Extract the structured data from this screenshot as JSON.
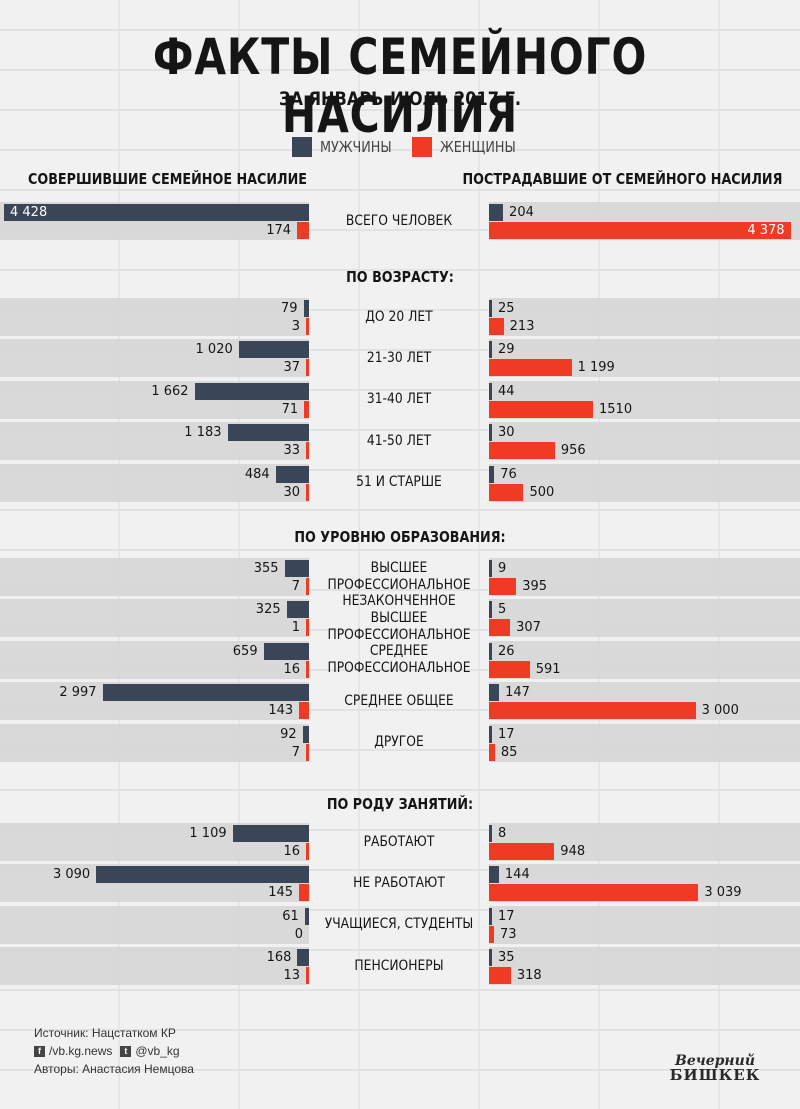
{
  "title": "ФАКТЫ СЕМЕЙНОГО НАСИЛИЯ",
  "subtitle": "ЗА ЯНВАРЬ-ИЮЛЬ 2017 Г.",
  "colors": {
    "men": "#3b4558",
    "women": "#f03b24",
    "row_bg": "#d6d6d6"
  },
  "legend": {
    "men": "МУЖЧИНЫ",
    "women": "ЖЕНЩИНЫ"
  },
  "headers": {
    "left": "СОВЕРШИВШИЕ СЕМЕЙНОЕ НАСИЛИЕ",
    "right": "ПОСТРАДАВШИЕ ОТ СЕМЕЙНОГО НАСИЛИЯ"
  },
  "chart_data": {
    "type": "bar",
    "orientation": "horizontal-butterfly",
    "series_names": [
      "МУЖЧИНЫ",
      "ЖЕНЩИНЫ"
    ],
    "groups": [
      {
        "heading": "",
        "rows": [
          {
            "label": "ВСЕГО ЧЕЛОВЕК",
            "label_lines": [
              "ВСЕГО ЧЕЛОВЕК"
            ],
            "perp_men": 4428,
            "perp_women": 174,
            "vict_men": 204,
            "vict_women": 4378,
            "perp_men_text": "4 428",
            "perp_women_text": "174",
            "vict_men_text": "204",
            "vict_women_text": "4 378"
          }
        ]
      },
      {
        "heading": "ПО ВОЗРАСТУ:",
        "rows": [
          {
            "label": "ДО 20 ЛЕТ",
            "label_lines": [
              "ДО 20 ЛЕТ"
            ],
            "perp_men": 79,
            "perp_women": 3,
            "vict_men": 25,
            "vict_women": 213,
            "perp_men_text": "79",
            "perp_women_text": "3",
            "vict_men_text": "25",
            "vict_women_text": "213"
          },
          {
            "label": "21-30 ЛЕТ",
            "label_lines": [
              "21-30 ЛЕТ"
            ],
            "perp_men": 1020,
            "perp_women": 37,
            "vict_men": 29,
            "vict_women": 1199,
            "perp_men_text": "1 020",
            "perp_women_text": "37",
            "vict_men_text": "29",
            "vict_women_text": "1 199"
          },
          {
            "label": "31-40 ЛЕТ",
            "label_lines": [
              "31-40 ЛЕТ"
            ],
            "perp_men": 1662,
            "perp_women": 71,
            "vict_men": 44,
            "vict_women": 1510,
            "perp_men_text": "1 662",
            "perp_women_text": "71",
            "vict_men_text": "44",
            "vict_women_text": "1510"
          },
          {
            "label": "41-50 ЛЕТ",
            "label_lines": [
              "41-50 ЛЕТ"
            ],
            "perp_men": 1183,
            "perp_women": 33,
            "vict_men": 30,
            "vict_women": 956,
            "perp_men_text": "1 183",
            "perp_women_text": "33",
            "vict_men_text": "30",
            "vict_women_text": "956"
          },
          {
            "label": "51 И СТАРШЕ",
            "label_lines": [
              "51 И СТАРШЕ"
            ],
            "perp_men": 484,
            "perp_women": 30,
            "vict_men": 76,
            "vict_women": 500,
            "perp_men_text": "484",
            "perp_women_text": "30",
            "vict_men_text": "76",
            "vict_women_text": "500"
          }
        ]
      },
      {
        "heading": "ПО УРОВНЮ ОБРАЗОВАНИЯ:",
        "rows": [
          {
            "label": "ВЫСШЕЕ ПРОФЕССИОНАЛЬНОЕ",
            "label_lines": [
              "ВЫСШЕЕ",
              "ПРОФЕССИОНАЛЬНОЕ"
            ],
            "perp_men": 355,
            "perp_women": 7,
            "vict_men": 9,
            "vict_women": 395,
            "perp_men_text": "355",
            "perp_women_text": "7",
            "vict_men_text": "9",
            "vict_women_text": "395"
          },
          {
            "label": "НЕЗАКОНЧЕННОЕ ВЫСШЕЕ ПРОФЕССИОНАЛЬНОЕ",
            "label_lines": [
              "НЕЗАКОНЧЕННОЕ ВЫСШЕЕ",
              "ПРОФЕССИОНАЛЬНОЕ"
            ],
            "perp_men": 325,
            "perp_women": 1,
            "vict_men": 5,
            "vict_women": 307,
            "perp_men_text": "325",
            "perp_women_text": "1",
            "vict_men_text": "5",
            "vict_women_text": "307"
          },
          {
            "label": "СРЕДНЕЕ ПРОФЕССИОНАЛЬНОЕ",
            "label_lines": [
              "СРЕДНЕЕ",
              "ПРОФЕССИОНАЛЬНОЕ"
            ],
            "perp_men": 659,
            "perp_women": 16,
            "vict_men": 26,
            "vict_women": 591,
            "perp_men_text": "659",
            "perp_women_text": "16",
            "vict_men_text": "26",
            "vict_women_text": "591"
          },
          {
            "label": "СРЕДНЕЕ ОБЩЕЕ",
            "label_lines": [
              "СРЕДНЕЕ ОБЩЕЕ"
            ],
            "perp_men": 2997,
            "perp_women": 143,
            "vict_men": 147,
            "vict_women": 3000,
            "perp_men_text": "2 997",
            "perp_women_text": "143",
            "vict_men_text": "147",
            "vict_women_text": "3 000"
          },
          {
            "label": "ДРУГОЕ",
            "label_lines": [
              "ДРУГОЕ"
            ],
            "perp_men": 92,
            "perp_women": 7,
            "vict_men": 17,
            "vict_women": 85,
            "perp_men_text": "92",
            "perp_women_text": "7",
            "vict_men_text": "17",
            "vict_women_text": "85"
          }
        ]
      },
      {
        "heading": "ПО РОДУ ЗАНЯТИЙ:",
        "rows": [
          {
            "label": "РАБОТАЮТ",
            "label_lines": [
              "РАБОТАЮТ"
            ],
            "perp_men": 1109,
            "perp_women": 16,
            "vict_men": 8,
            "vict_women": 948,
            "perp_men_text": "1 109",
            "perp_women_text": "16",
            "vict_men_text": "8",
            "vict_women_text": "948"
          },
          {
            "label": "НЕ РАБОТАЮТ",
            "label_lines": [
              "НЕ РАБОТАЮТ"
            ],
            "perp_men": 3090,
            "perp_women": 145,
            "vict_men": 144,
            "vict_women": 3039,
            "perp_men_text": "3 090",
            "perp_women_text": "145",
            "vict_men_text": "144",
            "vict_women_text": "3 039"
          },
          {
            "label": "УЧАЩИЕСЯ, СТУДЕНТЫ",
            "label_lines": [
              "УЧАЩИЕСЯ, СТУДЕНТЫ"
            ],
            "perp_men": 61,
            "perp_women": 0,
            "vict_men": 17,
            "vict_women": 73,
            "perp_men_text": "61",
            "perp_women_text": "0",
            "vict_men_text": "17",
            "vict_women_text": "73"
          },
          {
            "label": "ПЕНСИОНЕРЫ",
            "label_lines": [
              "ПЕНСИОНЕРЫ"
            ],
            "perp_men": 168,
            "perp_women": 13,
            "vict_men": 35,
            "vict_women": 318,
            "perp_men_text": "168",
            "perp_women_text": "13",
            "vict_men_text": "35",
            "vict_women_text": "318"
          }
        ]
      }
    ]
  },
  "footer": {
    "source": "Источник: Нацстатком КР",
    "facebook_icon": "facebook-icon",
    "facebook": "/vb.kg.news",
    "twitter_icon": "twitter-icon",
    "twitter": "@vb_kg",
    "authors": "Авторы: Анастасия Немцова"
  },
  "logo": {
    "line1": "Вечерний",
    "line2": "БИШКЕК"
  }
}
